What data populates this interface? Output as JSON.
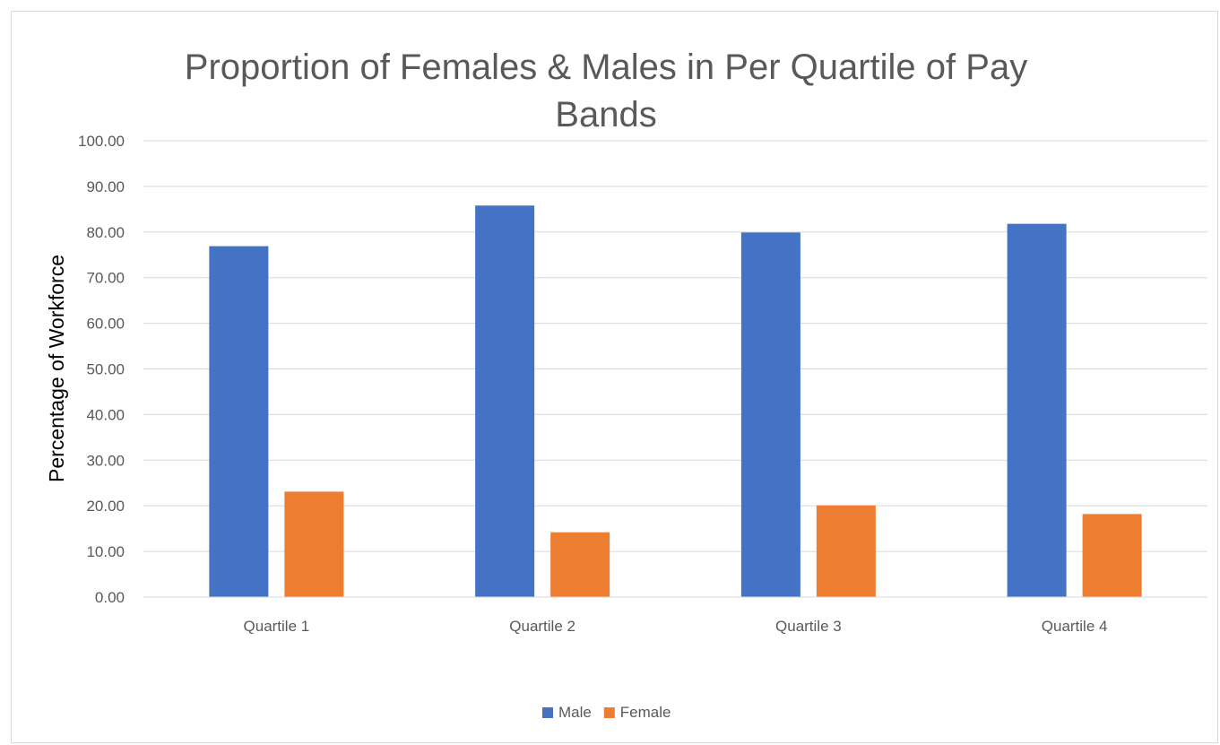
{
  "chart_data": {
    "type": "bar",
    "title_line1": "Proportion of Females & Males in Per Quartile of Pay",
    "title_line2": "Bands",
    "ylabel": "Percentage of Workforce",
    "xlabel": "",
    "categories": [
      "Quartile 1",
      "Quartile 2",
      "Quartile 3",
      "Quartile 4"
    ],
    "series": [
      {
        "name": "Male",
        "color": "#4472C4",
        "values": [
          76.9,
          85.8,
          79.9,
          81.8
        ]
      },
      {
        "name": "Female",
        "color": "#ED7D31",
        "values": [
          23.1,
          14.2,
          20.1,
          18.2
        ]
      }
    ],
    "ylim": [
      0,
      100
    ],
    "yticks": [
      "0.00",
      "10.00",
      "20.00",
      "30.00",
      "40.00",
      "50.00",
      "60.00",
      "70.00",
      "80.00",
      "90.00",
      "100.00"
    ],
    "grid": true,
    "legend_position": "bottom"
  }
}
